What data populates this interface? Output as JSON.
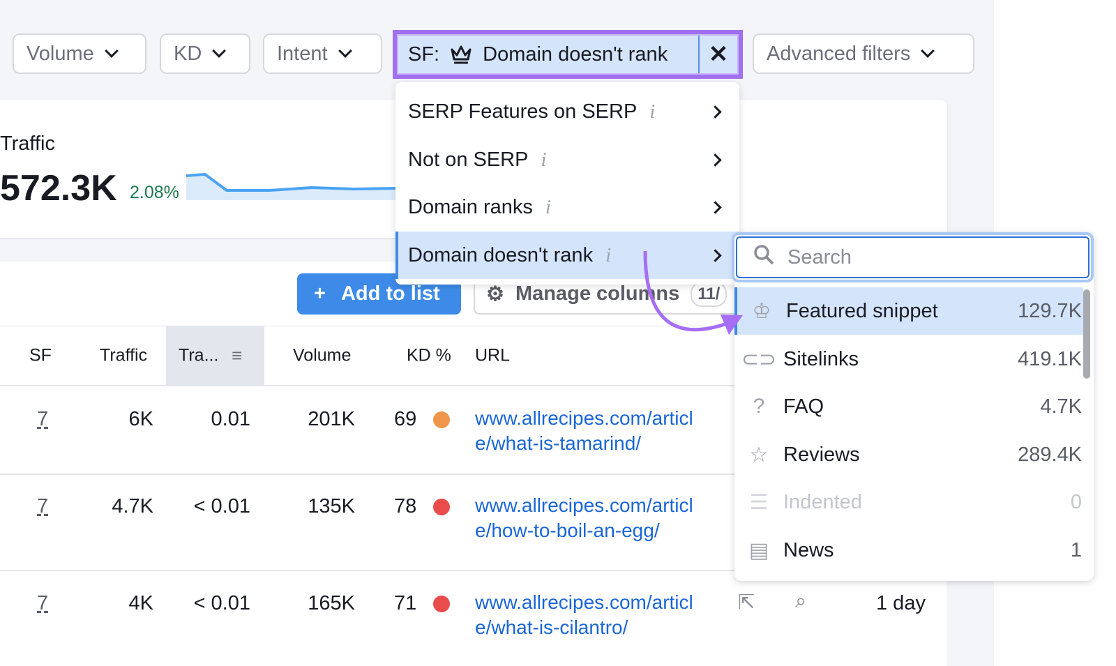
{
  "filters": {
    "volume": "Volume",
    "kd": "KD",
    "intent": "Intent",
    "sf_prefix": "SF:",
    "sf_value": "Domain doesn't rank",
    "advanced": "Advanced filters"
  },
  "summary": {
    "label": "Traffic",
    "value": "572.3K",
    "change": "2.08%",
    "change_color": "#1e7a4f"
  },
  "toolbar": {
    "add_to_list": "Add to list",
    "manage_columns": "Manage columns",
    "count": "11/"
  },
  "table": {
    "headers": [
      "SF",
      "Traffic",
      "Tra...",
      "Volume",
      "KD %",
      "URL"
    ],
    "rows": [
      {
        "sf": "7",
        "traffic": "6K",
        "share": "0.01",
        "volume": "201K",
        "kd": "69",
        "kd_color": "#f0964a",
        "url1": "www.allrecipes.com/articl",
        "url2": "e/what-is-tamarind/"
      },
      {
        "sf": "7",
        "traffic": "4.7K",
        "share": "< 0.01",
        "volume": "135K",
        "kd": "78",
        "kd_color": "#ea4c4c",
        "url1": "www.allrecipes.com/articl",
        "url2": "e/how-to-boil-an-egg/"
      },
      {
        "sf": "7",
        "traffic": "4K",
        "share": "< 0.01",
        "volume": "165K",
        "kd": "71",
        "kd_color": "#ea4c4c",
        "url1": "www.allrecipes.com/articl",
        "url2": "e/what-is-cilantro/",
        "updated": "1 day"
      }
    ]
  },
  "menu": {
    "items": [
      {
        "label": "SERP Features on SERP"
      },
      {
        "label": "Not on SERP"
      },
      {
        "label": "Domain ranks"
      },
      {
        "label": "Domain doesn't rank",
        "selected": true
      }
    ]
  },
  "submenu": {
    "search_placeholder": "Search",
    "items": [
      {
        "icon": "crown-icon",
        "label": "Featured snippet",
        "value": "129.7K",
        "selected": true
      },
      {
        "icon": "link-icon",
        "label": "Sitelinks",
        "value": "419.1K"
      },
      {
        "icon": "question-icon",
        "label": "FAQ",
        "value": "4.7K"
      },
      {
        "icon": "star-icon",
        "label": "Reviews",
        "value": "289.4K"
      },
      {
        "icon": "indented-icon",
        "label": "Indented",
        "value": "0",
        "disabled": true
      },
      {
        "icon": "news-icon",
        "label": "News",
        "value": "1"
      }
    ]
  },
  "colors": {
    "accent": "#a070f0",
    "primary": "#3d8ae8",
    "link": "#1a66d6",
    "highlight": "#d4e4fb"
  }
}
